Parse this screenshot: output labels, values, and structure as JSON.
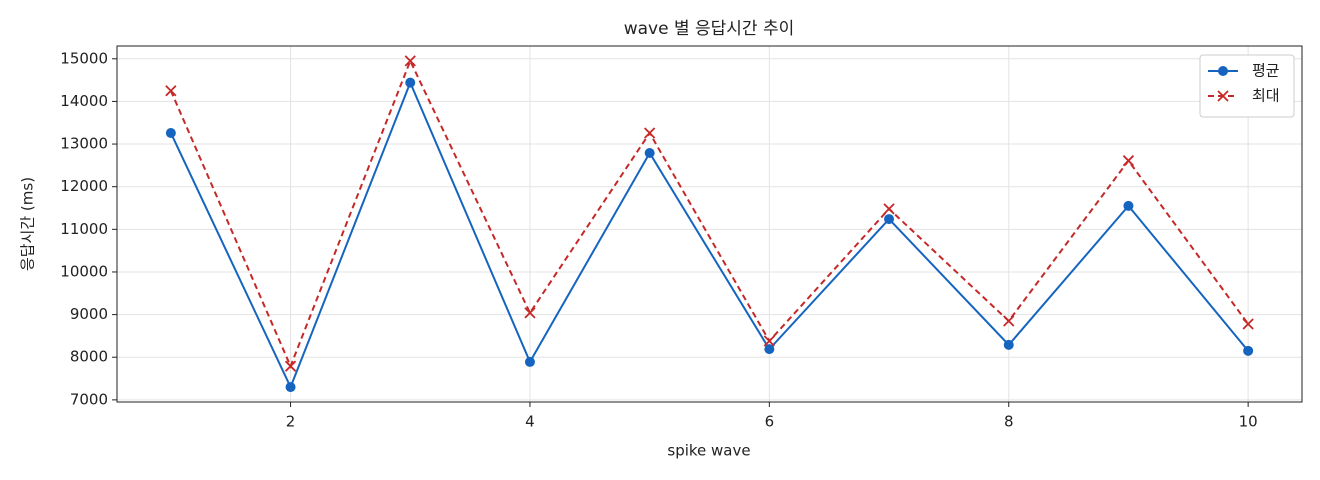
{
  "chart_data": {
    "type": "line",
    "title": "wave 별 응답시간 추이",
    "x_label": "spike wave",
    "y_label": "응답시간 (ms)",
    "x": [
      1,
      2,
      3,
      4,
      5,
      6,
      7,
      8,
      9,
      10
    ],
    "series": [
      {
        "name": "평균",
        "color": "#1565c0",
        "marker": "o",
        "linestyle": "solid",
        "values": [
          13260,
          7300,
          14440,
          7890,
          12790,
          8190,
          11240,
          8290,
          11550,
          8150
        ]
      },
      {
        "name": "최대",
        "color": "#c62828",
        "marker": "x",
        "linestyle": "dashed",
        "values": [
          14250,
          7790,
          14950,
          9040,
          13260,
          8380,
          11480,
          8850,
          12610,
          8780
        ]
      }
    ],
    "xlim": [
      0.55,
      10.45
    ],
    "xticks": [
      2,
      4,
      6,
      8,
      10
    ],
    "ylim": [
      6950,
      15300
    ],
    "yticks": [
      7000,
      8000,
      9000,
      10000,
      11000,
      12000,
      13000,
      14000,
      15000
    ],
    "grid": true,
    "legend": "upper right"
  }
}
